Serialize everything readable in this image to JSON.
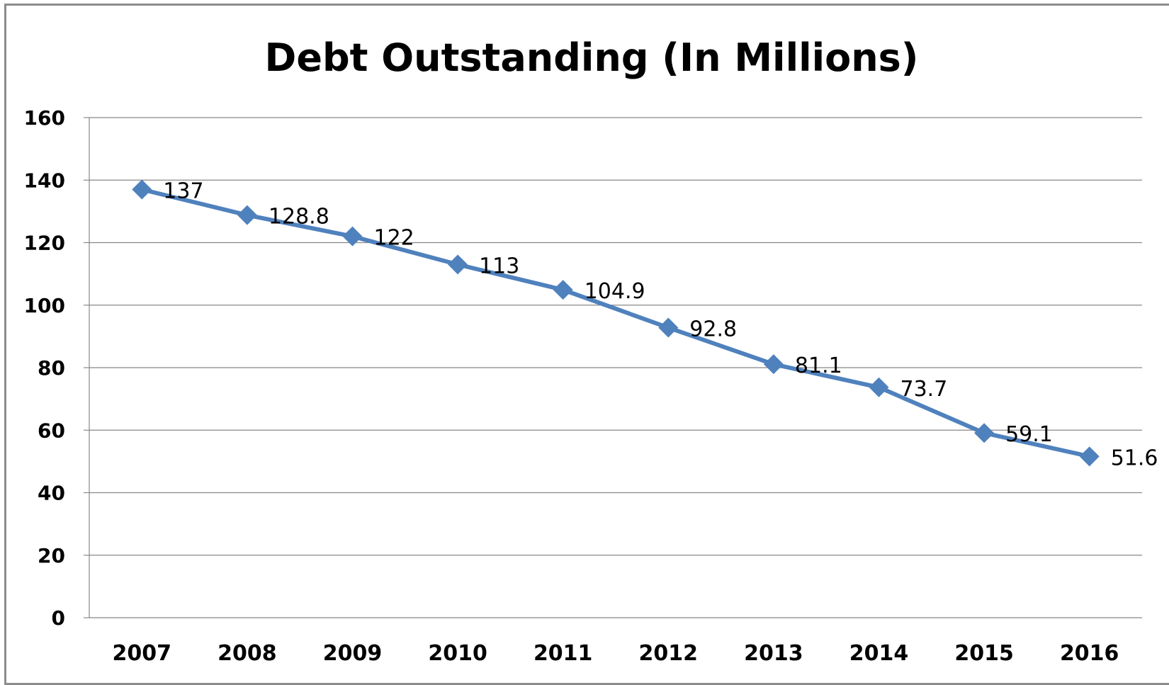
{
  "chart_data": {
    "type": "line",
    "title": "Debt Outstanding (In Millions)",
    "xlabel": "",
    "ylabel": "",
    "categories": [
      "2007",
      "2008",
      "2009",
      "2010",
      "2011",
      "2012",
      "2013",
      "2014",
      "2015",
      "2016"
    ],
    "series": [
      {
        "values": [
          137,
          128.8,
          122,
          113,
          104.9,
          92.8,
          81.1,
          73.7,
          59.1,
          51.6
        ],
        "data_labels": [
          "137",
          "128.8",
          "122",
          "113",
          "104.9",
          "92.8",
          "81.1",
          "73.7",
          "59.1",
          "51.6"
        ],
        "color": "#4f81bd",
        "marker": "diamond"
      }
    ],
    "ylim": [
      0,
      160
    ],
    "yticks": [
      "0",
      "20",
      "40",
      "60",
      "80",
      "100",
      "120",
      "140",
      "160"
    ],
    "grid": true,
    "legend": "none"
  }
}
